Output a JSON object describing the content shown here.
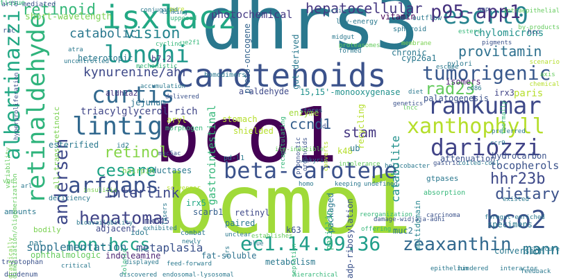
{
  "words": [
    {
      "text": "bco1",
      "color": "#440154"
    },
    {
      "text": "bcmo1",
      "color": "#a0da39"
    },
    {
      "text": "dhrs3",
      "color": "#2a788e"
    },
    {
      "text": "carotenoids",
      "color": "#3b528b"
    },
    {
      "text": "beta-carotene",
      "color": "#3b528b"
    },
    {
      "text": "isxlacz",
      "color": "#22a884"
    },
    {
      "text": "escrt0",
      "color": "#26828e"
    },
    {
      "text": "retinaldehyde",
      "color": "#2fb47c"
    },
    {
      "text": "albertinazzi",
      "color": "#22a884"
    },
    {
      "text": "longhi",
      "color": "#1f988b"
    },
    {
      "text": "lintig",
      "color": "#31688e"
    },
    {
      "text": "curtis",
      "color": "#31688e"
    },
    {
      "text": "ramkumar",
      "color": "#3e4989"
    },
    {
      "text": "dariozzi",
      "color": "#414487"
    },
    {
      "text": "xanthophyll",
      "color": "#b5de2b"
    },
    {
      "text": "tumorigenic",
      "color": "#38588c"
    },
    {
      "text": "p95-app1",
      "color": "#46327e"
    },
    {
      "text": "hepatocellular",
      "color": "#453781"
    },
    {
      "text": "provitamin",
      "color": "#2d708e"
    },
    {
      "text": "arfgaps",
      "color": "#3b528b"
    },
    {
      "text": "hepatoma",
      "color": "#414487"
    },
    {
      "text": "bco2",
      "color": "#3b528b"
    },
    {
      "text": "ec1.14.99.36",
      "color": "#1f9e89"
    },
    {
      "text": "zeaxanthin",
      "color": "#31688e"
    },
    {
      "text": "non-hccs",
      "color": "#1fa188"
    },
    {
      "text": "andersen",
      "color": "#3e4989"
    },
    {
      "text": "cesare",
      "color": "#20a486"
    },
    {
      "text": "retinol",
      "color": "#86d549"
    },
    {
      "text": "retinoid",
      "color": "#35b779"
    },
    {
      "text": "hhr23b",
      "color": "#3e4989"
    },
    {
      "text": "dietary",
      "color": "#3b528b"
    },
    {
      "text": "rad23",
      "color": "#65cb5e"
    },
    {
      "text": "ccnd1",
      "color": "#355f8d"
    },
    {
      "text": "mann",
      "color": "#2a788e"
    },
    {
      "text": "stam",
      "color": "#453781"
    },
    {
      "text": "vision",
      "color": "#25848e"
    },
    {
      "text": "catabolic",
      "color": "#2a788e"
    },
    {
      "text": "kynurenine/ahr",
      "color": "#3e4989"
    },
    {
      "text": "interlink",
      "color": "#3e4989"
    },
    {
      "text": "supplementation",
      "color": "#2c728e"
    },
    {
      "text": "photochemical",
      "color": "#443983"
    },
    {
      "text": "short-wavelength",
      "color": "#7ad151"
    },
    {
      "text": "tocopherols",
      "color": "#3b528b"
    },
    {
      "text": "catabolite",
      "color": "#21918c"
    },
    {
      "text": "metaplasia",
      "color": "#3b528b"
    },
    {
      "text": "indoleamine",
      "color": "#481f70"
    },
    {
      "text": "a-aldehyde",
      "color": "#3e4989"
    },
    {
      "text": "15,15'-monooxygenase",
      "color": "#21918c"
    },
    {
      "text": "isomers",
      "color": "#481f70"
    },
    {
      "text": "chylomicrons",
      "color": "#21918c"
    },
    {
      "text": "gastrointestinal",
      "color": "#35b779"
    },
    {
      "text": "proto-oncogene",
      "color": "#33638d"
    },
    {
      "text": "gut-derived",
      "color": "#2a788e"
    },
    {
      "text": "heterotopic",
      "color": "#2a788e"
    },
    {
      "text": "triacylglycerol-rich",
      "color": "#404688"
    },
    {
      "text": "jejunum",
      "color": "#2c728e"
    },
    {
      "text": "paris",
      "color": "#b5de2b"
    },
    {
      "text": "irx3",
      "color": "#414487"
    },
    {
      "text": "palatogenesis",
      "color": "#3b528b"
    },
    {
      "text": "attenuation",
      "color": "#3b528b"
    },
    {
      "text": "hydrocarbon",
      "color": "#3b528b"
    },
    {
      "text": "esterified",
      "color": "#2a788e"
    },
    {
      "text": "all-trans-retinoic",
      "color": "#7ad151"
    },
    {
      "text": "aldh1a2",
      "color": "#46327e"
    },
    {
      "text": "b7-2",
      "color": "#453781"
    },
    {
      "text": "stomach",
      "color": "#b5de2b"
    },
    {
      "text": "enzyme",
      "color": "#a0da39"
    },
    {
      "text": "recycling",
      "color": "#b5de2b"
    },
    {
      "text": "k48",
      "color": "#b5de2b"
    },
    {
      "text": "k63",
      "color": "#3b528b"
    },
    {
      "text": "mkn45",
      "color": "#3e4989"
    },
    {
      "text": "idol",
      "color": "#2a788e"
    },
    {
      "text": "scarb1",
      "color": "#355f8d"
    },
    {
      "text": "irx5",
      "color": "#22a884"
    },
    {
      "text": "retinyl",
      "color": "#3e4989"
    },
    {
      "text": "paired",
      "color": "#2a788e"
    },
    {
      "text": "adjacent",
      "color": "#3e4989"
    },
    {
      "text": "reductases",
      "color": "#2a788e"
    },
    {
      "text": "hairpin",
      "color": "#7ad151"
    },
    {
      "text": "fat-soluble",
      "color": "#2c728e"
    },
    {
      "text": "metabolism",
      "color": "#2a788e"
    },
    {
      "text": "paxillin",
      "color": "#35b779"
    },
    {
      "text": "packaged",
      "color": "#2a788e"
    },
    {
      "text": "adp-ribosylation",
      "color": "#3b528b"
    },
    {
      "text": "muc2",
      "color": "#2c728e"
    },
    {
      "text": "multidomain",
      "color": "#25848e"
    },
    {
      "text": "conversion",
      "color": "#2a788e"
    },
    {
      "text": "specimens",
      "color": "#2a788e"
    },
    {
      "text": "vitamin",
      "color": "#440154"
    },
    {
      "text": "chronic",
      "color": "#2a788e"
    },
    {
      "text": "cyp26a1",
      "color": "#2a788e"
    },
    {
      "text": "bodily",
      "color": "#7ad151"
    },
    {
      "text": "nat",
      "color": "#2a788e"
    },
    {
      "text": "tryptophan",
      "color": "#3b528b"
    },
    {
      "text": "duodenum",
      "color": "#3b528b"
    },
    {
      "text": "ophthalmologic",
      "color": "#65cb5e"
    },
    {
      "text": "amounts",
      "color": "#2a788e"
    },
    {
      "text": "aryl",
      "color": "#b5de2b"
    },
    {
      "text": "morphogen",
      "color": "#35b779"
    },
    {
      "text": "shielded",
      "color": "#b5de2b"
    },
    {
      "text": "ub",
      "color": "#2a788e"
    },
    {
      "text": "id2",
      "color": "#2a788e"
    },
    {
      "text": "pd-l1",
      "color": "#2a788e"
    },
    {
      "text": "mechanistic",
      "color": "#35b779"
    },
    {
      "text": "accumulation",
      "color": "#2a788e"
    },
    {
      "text": "cyclind1",
      "color": "#35b779"
    },
    {
      "text": "e2f1",
      "color": "#35b779"
    },
    {
      "text": "homodimers",
      "color": "#2a788e"
    },
    {
      "text": "formed",
      "color": "#2a788e"
    },
    {
      "text": "proteasomes",
      "color": "#65cb5e"
    },
    {
      "text": "membrane",
      "color": "#7ad151"
    },
    {
      "text": "pylori",
      "color": "#2a788e"
    },
    {
      "text": "escape",
      "color": "#2a788e"
    },
    {
      "text": "pigments",
      "color": "#3b528b"
    },
    {
      "text": "hcc",
      "color": "#3b528b"
    },
    {
      "text": "outflow",
      "color": "#2a788e"
    },
    {
      "text": "low-energy",
      "color": "#2a788e"
    },
    {
      "text": "spheroid",
      "color": "#2a788e"
    },
    {
      "text": "midgut",
      "color": "#2a788e"
    },
    {
      "text": "supposed",
      "color": "#35b779"
    },
    {
      "text": "conjugated",
      "color": "#2a788e"
    },
    {
      "text": "linking",
      "color": "#2a788e"
    },
    {
      "text": "pure",
      "color": "#b5de2b"
    },
    {
      "text": "app",
      "color": "#3b528b"
    },
    {
      "text": "arf6-mediated",
      "color": "#3b528b"
    },
    {
      "text": "rac",
      "color": "#3b528b"
    },
    {
      "text": "lncc",
      "color": "#65cb5e"
    },
    {
      "text": "genetics",
      "color": "#3b528b"
    },
    {
      "text": "diet",
      "color": "#2a788e"
    },
    {
      "text": "cd86",
      "color": "#2a788e"
    },
    {
      "text": "preferred",
      "color": "#2a788e"
    },
    {
      "text": "ccr9",
      "color": "#2a788e"
    },
    {
      "text": "gastric",
      "color": "#3b528b"
    },
    {
      "text": "coiled-coil",
      "color": "#2a788e"
    },
    {
      "text": "existed",
      "color": "#2a788e"
    },
    {
      "text": "foregut-enriched",
      "color": "#2a788e"
    },
    {
      "text": "absorption",
      "color": "#35b779"
    },
    {
      "text": "gtpases",
      "color": "#2a788e"
    },
    {
      "text": "damage-widjaja-adhi",
      "color": "#3b528b"
    },
    {
      "text": "reorganization",
      "color": "#35b779"
    },
    {
      "text": "offering",
      "color": "#35b779"
    },
    {
      "text": "carcinoma",
      "color": "#3b528b"
    },
    {
      "text": "interactor",
      "color": "#2a788e"
    },
    {
      "text": "obscure",
      "color": "#2a788e"
    },
    {
      "text": "epithelium",
      "color": "#2a788e"
    },
    {
      "text": "hindered",
      "color": "#2a788e"
    },
    {
      "text": "feedback",
      "color": "#2a788e"
    },
    {
      "text": "hierarchical",
      "color": "#35b779"
    },
    {
      "text": "endosomal-lysosomal",
      "color": "#2a788e"
    },
    {
      "text": "discovered",
      "color": "#2a788e"
    },
    {
      "text": "feed-forward",
      "color": "#2a788e"
    },
    {
      "text": "displayed",
      "color": "#2a788e"
    },
    {
      "text": "critical",
      "color": "#2a788e"
    },
    {
      "text": "colonic",
      "color": "#35b779"
    },
    {
      "text": "establishes",
      "color": "#65cb5e"
    },
    {
      "text": "homo",
      "color": "#2a788e"
    },
    {
      "text": "keeping",
      "color": "#2a788e"
    },
    {
      "text": "undefined",
      "color": "#2a788e"
    },
    {
      "text": "helicobacter",
      "color": "#2a788e"
    },
    {
      "text": "intolerance",
      "color": "#65cb5e"
    },
    {
      "text": "ankyrin",
      "color": "#2a788e"
    },
    {
      "text": "muc5ac",
      "color": "#3b528b"
    },
    {
      "text": "scavenger",
      "color": "#b5de2b"
    },
    {
      "text": "deficiency",
      "color": "#2a788e"
    },
    {
      "text": "insulitis",
      "color": "#7ad151"
    },
    {
      "text": "drastically",
      "color": "#7ad151"
    },
    {
      "text": "bioavailability",
      "color": "#2a788e"
    },
    {
      "text": "exhibited",
      "color": "#2a788e"
    },
    {
      "text": "combat",
      "color": "#2a788e"
    },
    {
      "text": "newly",
      "color": "#2a788e"
    },
    {
      "text": "unclear",
      "color": "#2a788e"
    },
    {
      "text": "blue",
      "color": "#2a788e"
    },
    {
      "text": "hrs",
      "color": "#2a788e"
    },
    {
      "text": "septation",
      "color": "#35b779"
    },
    {
      "text": "lasers",
      "color": "#2a788e"
    },
    {
      "text": "uncontrolled",
      "color": "#2a788e"
    },
    {
      "text": "atra",
      "color": "#2a788e"
    },
    {
      "text": "variability",
      "color": "#65cb5e"
    },
    {
      "text": "hyperproliferation",
      "color": "#3b528b"
    },
    {
      "text": "dimerization/oligomerization",
      "color": "#65cb5e"
    },
    {
      "text": "arl",
      "color": "#2a788e"
    },
    {
      "text": "von",
      "color": "#65cb5e"
    },
    {
      "text": "prognostic",
      "color": "#3b528b"
    },
    {
      "text": "organoids",
      "color": "#3b528b"
    },
    {
      "text": "di",
      "color": "#3b528b"
    },
    {
      "text": "converts",
      "color": "#b5de2b"
    },
    {
      "text": "ile-inducible",
      "color": "#65cb5e"
    },
    {
      "text": "stores",
      "color": "#2a788e"
    },
    {
      "text": "recapitulating",
      "color": "#35b779"
    },
    {
      "text": "delivered",
      "color": "#3b528b"
    },
    {
      "text": "thermally",
      "color": "#35b779"
    },
    {
      "text": "chemical",
      "color": "#b5de2b"
    },
    {
      "text": "scenario",
      "color": "#b5de2b"
    },
    {
      "text": "by-products",
      "color": "#65cb5e"
    },
    {
      "text": "axis",
      "color": "#65cb5e"
    },
    {
      "text": "intraepithelial",
      "color": "#65cb5e"
    },
    {
      "text": "inactive",
      "color": "#2a788e"
    },
    {
      "text": "esters",
      "color": "#35b779"
    },
    {
      "text": "tissue",
      "color": "#35b779"
    }
  ]
}
